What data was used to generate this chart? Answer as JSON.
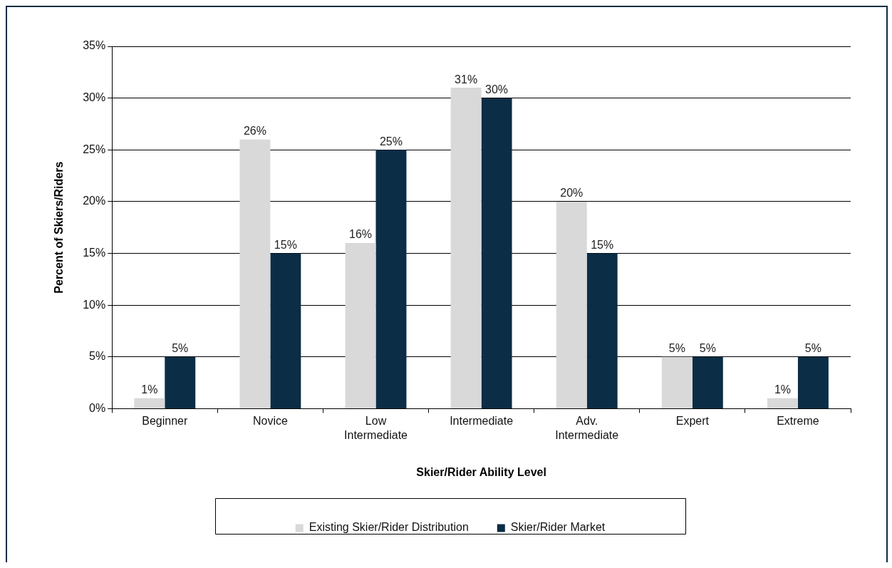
{
  "chart_data": {
    "type": "bar",
    "xlabel": "Skier/Rider Ability Level",
    "ylabel": "Percent of Skiers/Riders",
    "categories": [
      "Beginner",
      "Novice",
      "Low Intermediate",
      "Intermediate",
      "Adv. Intermediate",
      "Expert",
      "Extreme"
    ],
    "series": [
      {
        "name": "Existing Skier/Rider Distribution",
        "color": "#d9d9d9",
        "values": [
          1,
          26,
          16,
          31,
          20,
          5,
          1
        ],
        "value_labels": [
          "1%",
          "26%",
          "16%",
          "31%",
          "20%",
          "5%",
          "1%"
        ]
      },
      {
        "name": "Skier/Rider Market",
        "color": "#0b2d45",
        "values": [
          5,
          15,
          25,
          30,
          15,
          5,
          5
        ],
        "value_labels": [
          "5%",
          "15%",
          "25%",
          "30%",
          "15%",
          "5%",
          "5%"
        ]
      }
    ],
    "ylim": [
      0,
      35
    ],
    "yticks": [
      {
        "value": 0,
        "label": "0%"
      },
      {
        "value": 5,
        "label": "5%"
      },
      {
        "value": 10,
        "label": "10%"
      },
      {
        "value": 15,
        "label": "15%"
      },
      {
        "value": 20,
        "label": "20%"
      },
      {
        "value": 25,
        "label": "25%"
      },
      {
        "value": 30,
        "label": "30%"
      },
      {
        "value": 35,
        "label": "35%"
      }
    ],
    "grid": "y",
    "legend": "bottom"
  }
}
